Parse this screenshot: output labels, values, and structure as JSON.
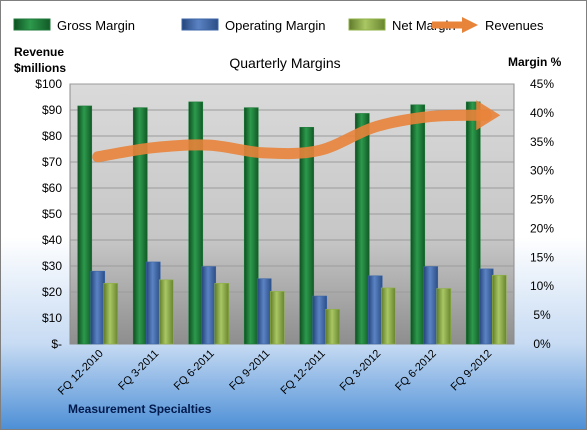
{
  "chart_data": {
    "type": "bar",
    "title": "Quarterly Margins",
    "left_axis_label_line1": "Revenue",
    "left_axis_label_line2": "$millions",
    "right_axis_label": "Margin %",
    "footer_label": "Measurement Specialties",
    "categories": [
      "FQ 12-2010",
      "FQ 3-2011",
      "FQ 6-2011",
      "FQ 9-2011",
      "FQ 12-2011",
      "FQ 3-2012",
      "FQ 6-2012",
      "FQ 9-2012"
    ],
    "left_axis": {
      "min": 0,
      "max": 100,
      "step": 10,
      "tick_labels": [
        "$-",
        "$10",
        "$20",
        "$30",
        "$40",
        "$50",
        "$60",
        "$70",
        "$80",
        "$90",
        "$100"
      ]
    },
    "right_axis": {
      "min": 0,
      "max": 45,
      "step": 5,
      "tick_labels": [
        "0%",
        "5%",
        "10%",
        "15%",
        "20%",
        "25%",
        "30%",
        "35%",
        "40%",
        "45%"
      ]
    },
    "series": [
      {
        "name": "Gross Margin",
        "kind": "bar",
        "axis": "right",
        "color": "#1e7a3a",
        "values": [
          41.2,
          40.9,
          41.9,
          40.9,
          37.5,
          39.9,
          41.4,
          41.9
        ]
      },
      {
        "name": "Operating Margin",
        "kind": "bar",
        "axis": "right",
        "color": "#3c66a8",
        "values": [
          12.6,
          14.2,
          13.4,
          11.3,
          8.3,
          11.8,
          13.4,
          13.0
        ]
      },
      {
        "name": "Net Margin",
        "kind": "bar",
        "axis": "right",
        "color": "#8fb046",
        "values": [
          10.5,
          11.1,
          10.5,
          9.1,
          6.0,
          9.7,
          9.6,
          11.9
        ]
      },
      {
        "name": "Revenues",
        "kind": "line",
        "axis": "left",
        "color": "#e8833a",
        "values": [
          72.0,
          75.5,
          76.5,
          73.5,
          74.5,
          83.5,
          87.5,
          88.0
        ]
      }
    ],
    "legend_position": "top",
    "grid": true
  }
}
